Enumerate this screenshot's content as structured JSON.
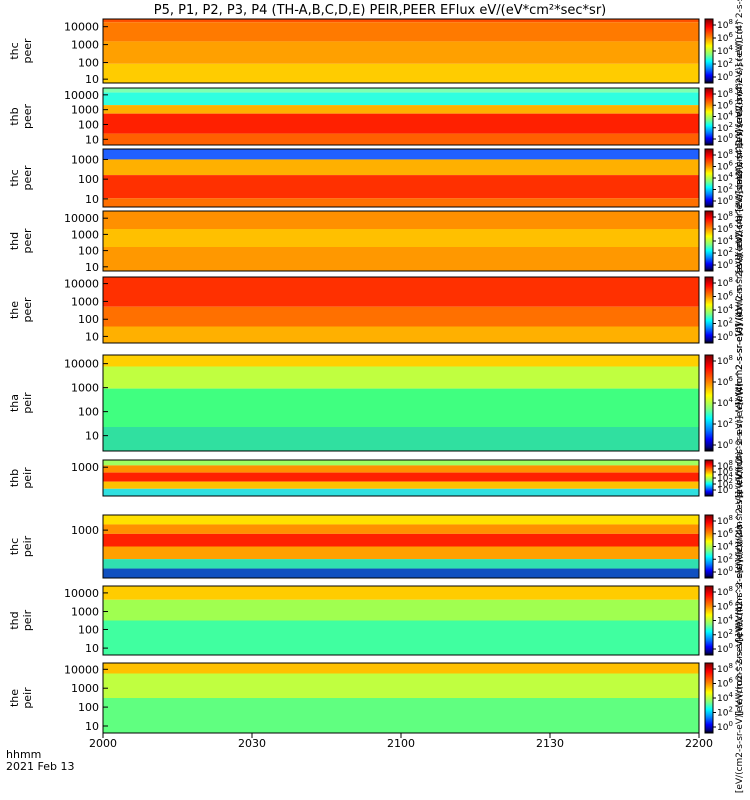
{
  "chart_data": {
    "type": "heatmap",
    "title": "P5, P1, P2, P3, P4 (TH-A,B,C,D,E) PEIR,PEER EFlux eV/(eV*cm²*sec*sr)",
    "x_axis": {
      "ticks": [
        "2000",
        "2030",
        "2100",
        "2130",
        "2200"
      ],
      "label_line1": "hhmm",
      "label_line2": "2021 Feb 13",
      "range": [
        "20:00",
        "22:00"
      ]
    },
    "colorbar": {
      "label": "[eV/(cm2-s-sr-eV)] (eV/(cm^2-s-sr-eV)) (4)",
      "ticks": [
        [
          "10",
          "8"
        ],
        [
          "10",
          "6"
        ],
        [
          "10",
          "4"
        ],
        [
          "10",
          "2"
        ],
        [
          "10",
          "0"
        ]
      ],
      "colors": [
        "#7f0000",
        "#ff0000",
        "#ff8000",
        "#ffff00",
        "#80ff80",
        "#00ffff",
        "#0080ff",
        "#0000ff",
        "#000080",
        "#000000"
      ]
    },
    "panels": [
      {
        "line1": "thc",
        "line2": "peer",
        "yticks": [
          "10000",
          "1000",
          "100",
          "10"
        ]
      },
      {
        "line1": "thb",
        "line2": "peer",
        "yticks": [
          "10000",
          "1000",
          "100",
          "10"
        ]
      },
      {
        "line1": "thc",
        "line2": "peer",
        "yticks": [
          "1000",
          "100",
          "10"
        ]
      },
      {
        "line1": "thd",
        "line2": "peer",
        "yticks": [
          "10000",
          "1000",
          "100",
          "10"
        ]
      },
      {
        "line1": "the",
        "line2": "peer",
        "yticks": [
          "10000",
          "1000",
          "100",
          "10"
        ]
      },
      {
        "line1": "tha",
        "line2": "peir",
        "yticks": [
          "10000",
          "1000",
          "100",
          "10"
        ]
      },
      {
        "line1": "thb",
        "line2": "peir",
        "yticks": [
          "1000"
        ]
      },
      {
        "line1": "thc",
        "line2": "peir",
        "yticks": [
          "1000"
        ]
      },
      {
        "line1": "thd",
        "line2": "peir",
        "yticks": [
          "10000",
          "1000",
          "100",
          "10"
        ]
      },
      {
        "line1": "the",
        "line2": "peir",
        "yticks": [
          "10000",
          "1000",
          "100",
          "10"
        ]
      }
    ]
  }
}
